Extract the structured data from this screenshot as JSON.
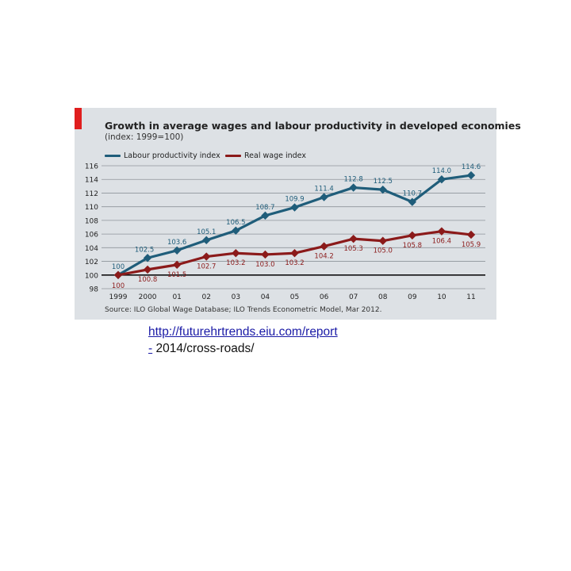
{
  "link": {
    "line1": "http://futurehrtrends.eiu.com/report",
    "dash": "-",
    "line2": " 2014/cross-roads/"
  },
  "chart_data": {
    "type": "line",
    "title": "Growth in average wages and labour productivity in developed economies",
    "subtitle": "(index: 1999=100)",
    "source": "Source: ILO Global Wage Database; ILO Trends Econometric Model, Mar 2012.",
    "categories": [
      "1999",
      "2000",
      "01",
      "02",
      "03",
      "04",
      "05",
      "06",
      "07",
      "08",
      "09",
      "10",
      "11"
    ],
    "series": [
      {
        "name": "Labour productivity index",
        "color": "#1f5d7a",
        "values": [
          100,
          102.5,
          103.6,
          105.1,
          106.5,
          108.7,
          109.9,
          111.4,
          112.8,
          112.5,
          110.7,
          114.0,
          114.6
        ],
        "labels": [
          "100",
          "102.5",
          "103.6",
          "105.1",
          "106.5",
          "108.7",
          "109.9",
          "111.4",
          "112.8",
          "112.5",
          "110.7",
          "114.0",
          "114.6"
        ]
      },
      {
        "name": "Real wage index",
        "color": "#8b1a1a",
        "values": [
          100,
          100.8,
          101.5,
          102.7,
          103.2,
          103.0,
          103.2,
          104.2,
          105.3,
          105.0,
          105.8,
          106.4,
          105.9
        ],
        "labels": [
          "100",
          "100.8",
          "101.5",
          "102.7",
          "103.2",
          "103.0",
          "103.2",
          "104.2",
          "105.3",
          "105.0",
          "105.8",
          "106.4",
          "105.9"
        ]
      }
    ],
    "ylim": [
      98,
      116
    ],
    "yticks": [
      "98",
      "100",
      "102",
      "104",
      "106",
      "108",
      "110",
      "112",
      "114",
      "116"
    ],
    "grid": true,
    "legend": "top-left",
    "baseline": 100,
    "colors": {
      "panel": "#dde1e5",
      "accent": "#e01e1e"
    }
  }
}
